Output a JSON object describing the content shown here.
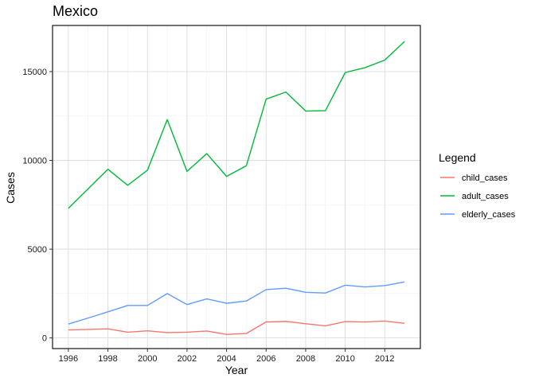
{
  "chart_data": {
    "type": "line",
    "title": "Mexico",
    "xlabel": "Year",
    "ylabel": "Cases",
    "xlim": [
      1995.2,
      2013.8
    ],
    "ylim": [
      -600,
      17600
    ],
    "x_ticks": [
      1996,
      1998,
      2000,
      2002,
      2004,
      2006,
      2008,
      2010,
      2012
    ],
    "y_ticks": [
      0,
      5000,
      10000,
      15000
    ],
    "x_tick_labels": [
      "1996",
      "1998",
      "2000",
      "2002",
      "2004",
      "2006",
      "2008",
      "2010",
      "2012"
    ],
    "y_tick_labels": [
      "0",
      "5000",
      "10000",
      "15000"
    ],
    "grid": true,
    "legend": {
      "title": "Legend",
      "position": "right"
    },
    "x": [
      1996,
      1997,
      1998,
      1999,
      2000,
      2001,
      2002,
      2003,
      2004,
      2005,
      2006,
      2007,
      2008,
      2009,
      2010,
      2011,
      2012,
      2013
    ],
    "series": [
      {
        "name": "child_cases",
        "color": "#F8766D",
        "values": [
          450,
          480,
          510,
          320,
          400,
          300,
          320,
          390,
          200,
          250,
          900,
          930,
          800,
          680,
          920,
          900,
          950,
          820
        ]
      },
      {
        "name": "adult_cases",
        "color": "#00BA38",
        "values": [
          7300,
          8400,
          9500,
          8600,
          9450,
          12300,
          9380,
          10380,
          9100,
          9700,
          13450,
          13850,
          12780,
          12800,
          14950,
          15220,
          15650,
          16700
        ]
      },
      {
        "name": "elderly_cases",
        "color": "#619CFF",
        "values": [
          780,
          1120,
          1470,
          1830,
          1830,
          2500,
          1880,
          2200,
          1950,
          2080,
          2720,
          2800,
          2570,
          2530,
          2970,
          2870,
          2950,
          3150
        ]
      }
    ]
  }
}
